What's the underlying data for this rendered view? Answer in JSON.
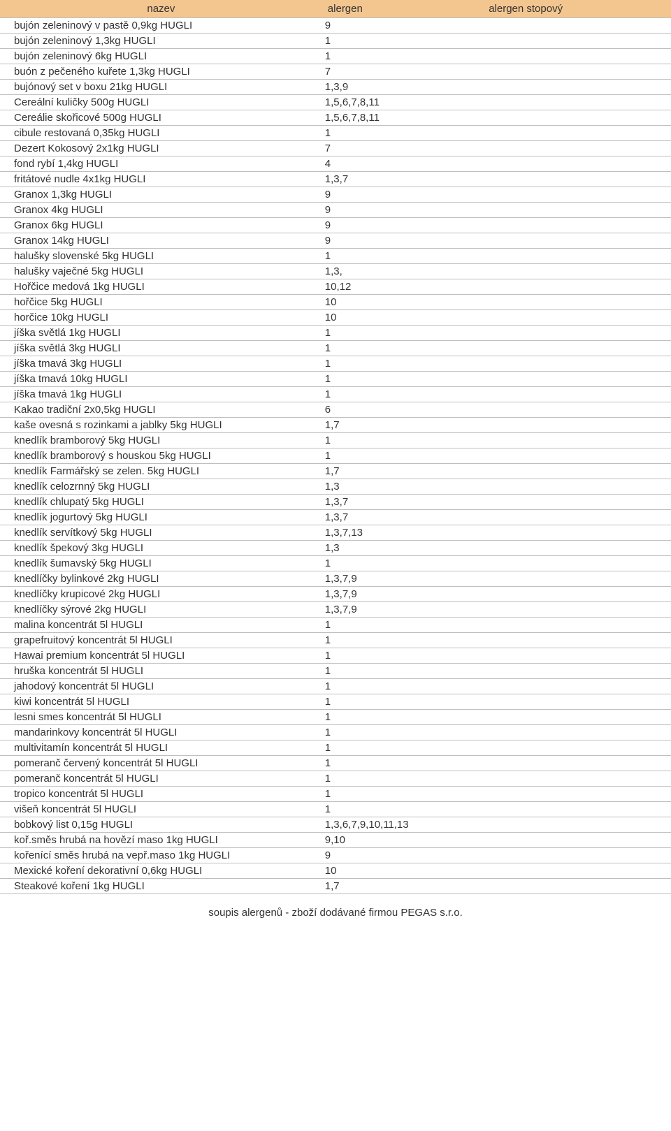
{
  "columns": [
    "nazev",
    "alergen",
    "alergen stopový"
  ],
  "rows": [
    [
      "bujón zeleninový v pastě 0,9kg HUGLI",
      "9",
      ""
    ],
    [
      "bujón zeleninový 1,3kg HUGLI",
      "1",
      ""
    ],
    [
      "bujón zeleninový 6kg HUGLI",
      "1",
      ""
    ],
    [
      "buón z pečeného kuřete 1,3kg HUGLI",
      "7",
      ""
    ],
    [
      "bujónový set v boxu 21kg HUGLI",
      "1,3,9",
      ""
    ],
    [
      "Cereální kuličky 500g HUGLI",
      "1,5,6,7,8,11",
      ""
    ],
    [
      "Cereálie skořicové 500g HUGLI",
      "1,5,6,7,8,11",
      ""
    ],
    [
      "cibule restovaná 0,35kg HUGLI",
      "1",
      ""
    ],
    [
      "Dezert Kokosový 2x1kg HUGLI",
      "7",
      ""
    ],
    [
      "fond rybí 1,4kg HUGLI",
      "4",
      ""
    ],
    [
      "fritátové nudle 4x1kg HUGLI",
      "1,3,7",
      ""
    ],
    [
      "Granox 1,3kg HUGLI",
      "9",
      ""
    ],
    [
      "Granox 4kg HUGLI",
      "9",
      ""
    ],
    [
      "Granox 6kg HUGLI",
      "9",
      ""
    ],
    [
      "Granox 14kg HUGLI",
      "9",
      ""
    ],
    [
      "halušky slovenské 5kg HUGLI",
      "1",
      ""
    ],
    [
      "halušky vaječné 5kg HUGLI",
      "1,3,",
      ""
    ],
    [
      "Hořčice medová 1kg HUGLI",
      "10,12",
      ""
    ],
    [
      "hořčice 5kg HUGLI",
      "10",
      ""
    ],
    [
      "horčice 10kg HUGLI",
      "10",
      ""
    ],
    [
      "jíška světlá 1kg HUGLI",
      "1",
      ""
    ],
    [
      "jíška světlá 3kg HUGLI",
      "1",
      ""
    ],
    [
      "jíška tmavá 3kg HUGLI",
      "1",
      ""
    ],
    [
      "jíška tmavá 10kg HUGLI",
      "1",
      ""
    ],
    [
      "jíška tmavá 1kg HUGLI",
      "1",
      ""
    ],
    [
      "Kakao tradiční 2x0,5kg HUGLI",
      "6",
      ""
    ],
    [
      "kaše ovesná s rozinkami a jablky 5kg HUGLI",
      "1,7",
      ""
    ],
    [
      "knedlík bramborový 5kg HUGLI",
      "1",
      ""
    ],
    [
      "knedlík bramborový s houskou 5kg HUGLI",
      "1",
      ""
    ],
    [
      "knedlík Farmářský se zelen. 5kg HUGLI",
      "1,7",
      ""
    ],
    [
      "knedlík celozrnný 5kg HUGLI",
      "1,3",
      ""
    ],
    [
      "knedlík chlupatý 5kg HUGLI",
      "1,3,7",
      ""
    ],
    [
      "knedlík jogurtový 5kg HUGLI",
      "1,3,7",
      ""
    ],
    [
      "knedlík servítkový 5kg HUGLI",
      "1,3,7,13",
      ""
    ],
    [
      "knedlík špekový 3kg HUGLI",
      "1,3",
      ""
    ],
    [
      "knedlík šumavský 5kg HUGLI",
      "1",
      ""
    ],
    [
      "knedlíčky bylinkové 2kg HUGLI",
      "1,3,7,9",
      ""
    ],
    [
      "knedlíčky krupicové 2kg HUGLI",
      "1,3,7,9",
      ""
    ],
    [
      "knedlíčky sýrové 2kg HUGLI",
      "1,3,7,9",
      ""
    ],
    [
      "malina koncentrát 5l HUGLI",
      "1",
      ""
    ],
    [
      "grapefruitový koncentrát 5l HUGLI",
      "1",
      ""
    ],
    [
      "Hawai premium koncentrát 5l HUGLI",
      "1",
      ""
    ],
    [
      "hruška koncentrát 5l HUGLI",
      "1",
      ""
    ],
    [
      "jahodový koncentrát 5l HUGLI",
      "1",
      ""
    ],
    [
      "kiwi koncentrát 5l HUGLI",
      "1",
      ""
    ],
    [
      "lesni smes koncentrát 5l HUGLI",
      "1",
      ""
    ],
    [
      "mandarinkovy koncentrát 5l HUGLI",
      "1",
      ""
    ],
    [
      "multivitamín koncentrát 5l HUGLI",
      "1",
      ""
    ],
    [
      "pomeranč červený  koncentrát 5l HUGLI",
      "1",
      ""
    ],
    [
      "pomeranč koncentrát 5l HUGLI",
      "1",
      ""
    ],
    [
      "tropico koncentrát  5l HUGLI",
      "1",
      ""
    ],
    [
      "višeň koncentrát 5l HUGLI",
      "1",
      ""
    ],
    [
      "bobkový list 0,15g HUGLI",
      "1,3,6,7,9,10,11,13",
      ""
    ],
    [
      "koř.směs hrubá na hovězí maso 1kg HUGLI",
      "9,10",
      ""
    ],
    [
      "kořenící směs hrubá na vepř.maso 1kg HUGLI",
      "9",
      ""
    ],
    [
      "Mexické koření dekorativní 0,6kg HUGLI",
      "10",
      ""
    ],
    [
      "Steakové koření 1kg HUGLI",
      "1,7",
      ""
    ]
  ],
  "footer": "soupis alergenů - zboží dodávané firmou PEGAS s.r.o."
}
